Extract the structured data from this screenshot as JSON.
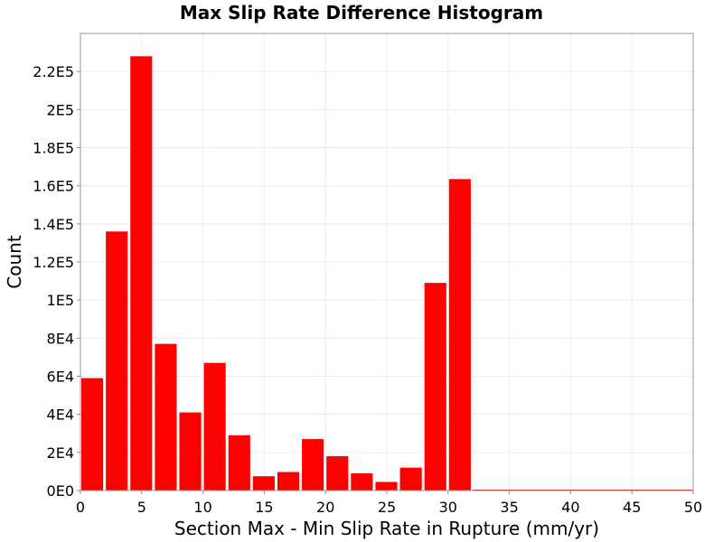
{
  "chart_data": {
    "type": "bar",
    "title": "Max Slip Rate Difference Histogram",
    "xlabel": "Section Max - Min Slip Rate in Rupture (mm/yr)",
    "ylabel": "Count",
    "xlim": [
      0,
      50
    ],
    "ylim": [
      0,
      240000
    ],
    "bin_width": 2,
    "x_ticks": [
      0,
      5,
      10,
      15,
      20,
      25,
      30,
      35,
      40,
      45,
      50
    ],
    "x_tick_labels": [
      "0",
      "5",
      "10",
      "15",
      "20",
      "25",
      "30",
      "35",
      "40",
      "45",
      "50"
    ],
    "y_ticks": [
      0,
      20000,
      40000,
      60000,
      80000,
      100000,
      120000,
      140000,
      160000,
      180000,
      200000,
      220000
    ],
    "y_tick_labels": [
      "0E0",
      "2E4",
      "4E4",
      "6E4",
      "8E4",
      "1E5",
      "1.2E5",
      "1.4E5",
      "1.6E5",
      "1.8E5",
      "2E5",
      "2.2E5"
    ],
    "bins": [
      {
        "x": 1,
        "value": 59000
      },
      {
        "x": 3,
        "value": 136000
      },
      {
        "x": 5,
        "value": 228000
      },
      {
        "x": 7,
        "value": 77000
      },
      {
        "x": 9,
        "value": 41000
      },
      {
        "x": 11,
        "value": 67000
      },
      {
        "x": 13,
        "value": 29000
      },
      {
        "x": 15,
        "value": 7500
      },
      {
        "x": 17,
        "value": 9700
      },
      {
        "x": 19,
        "value": 27000
      },
      {
        "x": 21,
        "value": 18000
      },
      {
        "x": 23,
        "value": 9000
      },
      {
        "x": 25,
        "value": 4500
      },
      {
        "x": 27,
        "value": 12000
      },
      {
        "x": 29,
        "value": 109000
      },
      {
        "x": 31,
        "value": 163500
      }
    ],
    "bar_color": "#ff0000",
    "grid": true,
    "grid_color": "#ececec",
    "frame_color": "#999999"
  }
}
